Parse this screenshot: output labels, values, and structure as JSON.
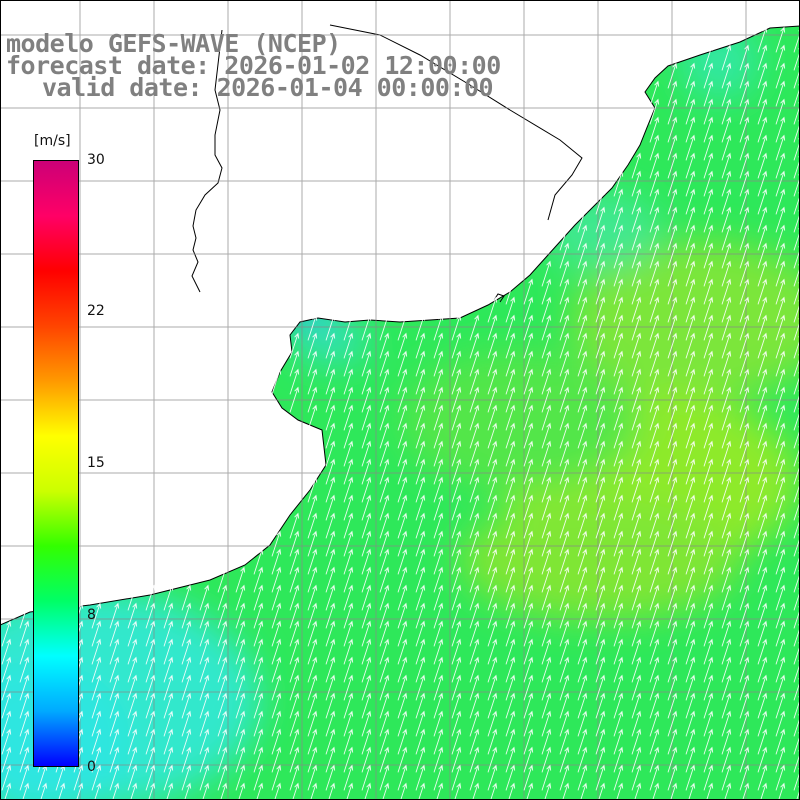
{
  "title": {
    "model": "modelo GEFS-WAVE (NCEP)",
    "forecast": "forecast date: 2026-01-02 12:00:00",
    "valid": "valid date: 2026-01-04 00:00:00"
  },
  "colorbar": {
    "unit": "[m/s]",
    "ticks": [
      "30",
      "22",
      "15",
      "8",
      "0"
    ],
    "range": [
      0,
      30
    ],
    "colors": [
      "#0000ff",
      "#00aaff",
      "#00ffff",
      "#00ff66",
      "#33ff00",
      "#ccff00",
      "#ffff00",
      "#ff9900",
      "#ff4400",
      "#ff0000",
      "#ff0066",
      "#cc0077"
    ]
  },
  "map": {
    "field": "wind speed",
    "vector_direction": "toward NNE",
    "typical_speed_m_s": 11,
    "gridlines": "on",
    "land_color": "#ffffff",
    "coastline_color": "#000000"
  }
}
